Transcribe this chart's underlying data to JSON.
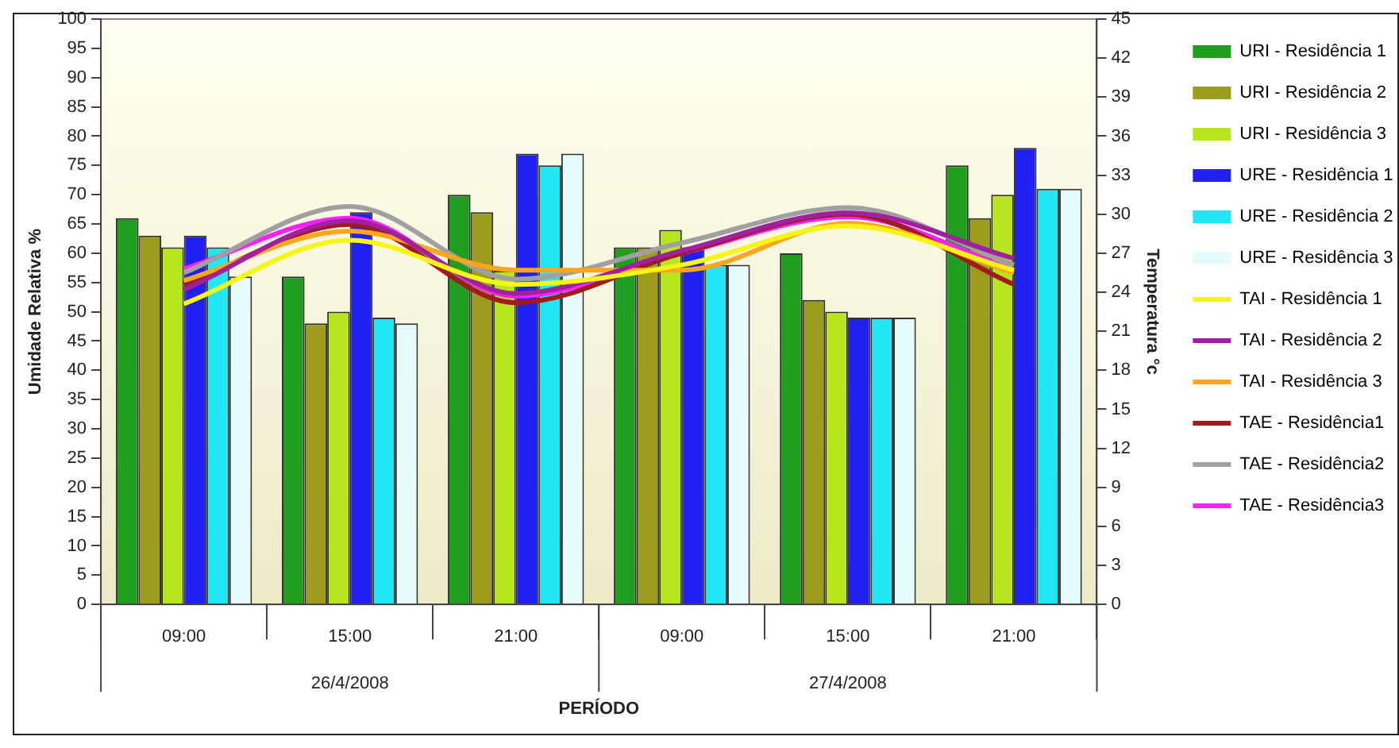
{
  "chart_data": {
    "type": "bar",
    "xlabel": "PERÍODO",
    "ylabel": "Umidade Relativa %",
    "y2label": "Temperatura °c",
    "categories": [
      "09:00",
      "15:00",
      "21:00",
      "09:00",
      "15:00",
      "21:00"
    ],
    "annotations": [
      "26/4/2008",
      "27/4/2008"
    ],
    "series": [
      {
        "name": "URI - Residência 1",
        "color": "#1f9e1f",
        "values": [
          66,
          56,
          70,
          61,
          60,
          75
        ]
      },
      {
        "name": "URI - Residência 2",
        "color": "#9c9c1e",
        "values": [
          63,
          48,
          67,
          61,
          52,
          66
        ]
      },
      {
        "name": "URI - Residência 3",
        "color": "#b8e61e",
        "values": [
          61,
          50,
          57,
          64,
          50,
          70
        ]
      },
      {
        "name": "URE - Residência 1",
        "color": "#2020f0",
        "values": [
          63,
          67,
          77,
          61,
          49,
          78
        ]
      },
      {
        "name": "URE - Residência 2",
        "color": "#20e6f5",
        "values": [
          61,
          49,
          75,
          58,
          49,
          71
        ]
      },
      {
        "name": "URE - Residência 3",
        "color": "#e6fcfc",
        "values": [
          56,
          48,
          77,
          58,
          49,
          71
        ]
      },
      {
        "name": "TAI - Residência 1",
        "type": "line",
        "axis": "y2",
        "color": "#f5f516",
        "values": [
          23.1,
          28.0,
          24.6,
          26.1,
          29.1,
          25.7
        ]
      },
      {
        "name": "TAI - Residência 2",
        "type": "line",
        "axis": "y2",
        "color": "#a020a0",
        "values": [
          24.2,
          29.5,
          23.9,
          27.2,
          30.1,
          26.6
        ]
      },
      {
        "name": "TAI - Residência 3",
        "type": "line",
        "axis": "y2",
        "color": "#ffa51e",
        "values": [
          24.9,
          28.7,
          25.7,
          25.7,
          29.3,
          25.5
        ]
      },
      {
        "name": "TAE - Residência1",
        "type": "line",
        "axis": "y2",
        "color": "#a01c1c",
        "values": [
          24.6,
          29.2,
          23.2,
          27.0,
          30.0,
          24.6
        ]
      },
      {
        "name": "TAE - Residência2",
        "type": "line",
        "axis": "y2",
        "color": "#a0a0a0",
        "values": [
          25.5,
          30.6,
          25.0,
          27.8,
          30.5,
          26.1
        ]
      },
      {
        "name": "TAE - Residência3",
        "type": "line",
        "axis": "y2",
        "color": "#ff20ff",
        "values": [
          25.8,
          29.7,
          23.7,
          27.0,
          29.8,
          25.7
        ]
      }
    ],
    "ylim": [
      0,
      100
    ],
    "yticks": [
      0,
      5,
      10,
      15,
      20,
      25,
      30,
      35,
      40,
      45,
      50,
      55,
      60,
      65,
      70,
      75,
      80,
      85,
      90,
      95,
      100
    ],
    "y2lim": [
      0,
      45
    ],
    "y2ticks": [
      0,
      3,
      6,
      9,
      12,
      15,
      18,
      21,
      24,
      27,
      30,
      33,
      36,
      39,
      42,
      45
    ],
    "grid": false,
    "legend": "right",
    "marker": "none",
    "line_style": "solid"
  }
}
